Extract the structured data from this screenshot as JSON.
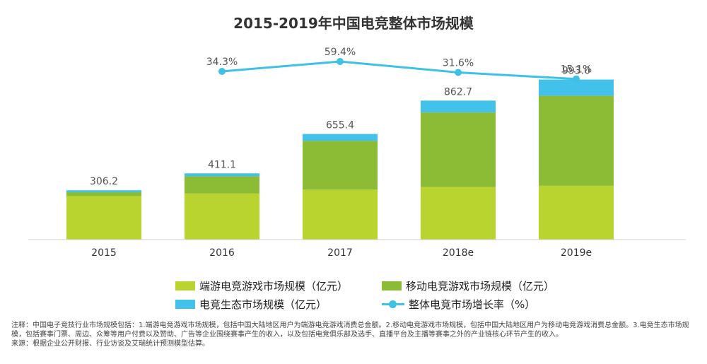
{
  "chart_data": {
    "type": "bar",
    "title": "2015-2019年中国电竞整体市场规模",
    "categories": [
      "2015",
      "2016",
      "2017",
      "2018e",
      "2019e"
    ],
    "series": [
      {
        "name": "端游电竞游戏市场规模（亿元）",
        "values": [
          269.0,
          286.0,
          310.0,
          327.0,
          334.0
        ],
        "color": "#b9d42e"
      },
      {
        "name": "移动电竞游戏市场规模（亿元）",
        "values": [
          25.0,
          107.0,
          303.0,
          462.0,
          559.0
        ],
        "color": "#8cbb35"
      },
      {
        "name": "电竞生态市场规模（亿元）",
        "values": [
          12.2,
          18.1,
          42.4,
          73.7,
          100.0
        ],
        "color": "#42c2ea"
      }
    ],
    "totals": [
      "306.2",
      "411.1",
      "655.4",
      "862.7",
      "993.0"
    ],
    "growth_rate": {
      "name": "整体电竞市场增长率（%）",
      "categories": [
        "2016",
        "2017",
        "2018e",
        "2019e"
      ],
      "values": [
        34.3,
        59.4,
        31.6,
        15.1
      ],
      "labels": [
        "34.3%",
        "59.4%",
        "31.6%",
        "15.1%"
      ],
      "color": "#3ec1e4"
    },
    "ylim": [
      0,
      1000
    ],
    "grid": false,
    "legend_position": "bottom"
  },
  "notes": {
    "note": "注释：中国电子竞技行业市场规模包括：1.端游电竞游戏市场规模，包括中国大陆地区用户为端游电竞游戏消费总金额。2.移动电竞游戏市场规模，包括中国大陆地区用户为移动电竞游戏消费总金额。3.电竞生态市场规模，包括赛事门票、周边、众筹等用户付费以及赞助、广告等企业围绕赛事产生的收入，以及包括电竞俱乐部及选手、直播平台及主播等赛事之外的产业链核心环节产生的收入。",
    "source": "来源：根据企业公开财报、行业访谈及艾瑞统计预测模型估算。"
  }
}
